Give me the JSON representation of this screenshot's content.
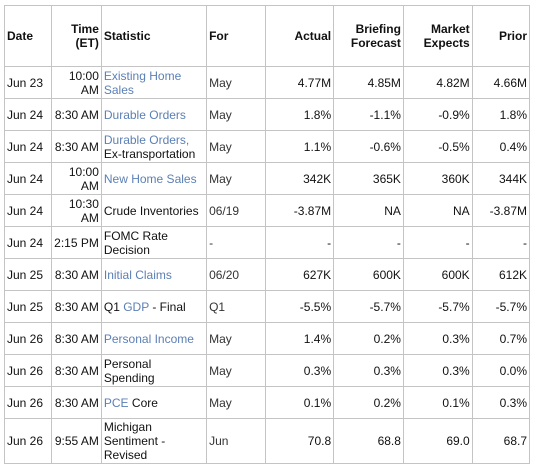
{
  "headers": {
    "date": "Date",
    "time_line1": "Time",
    "time_line2": "(ET)",
    "statistic": "Statistic",
    "for": "For",
    "actual": "Actual",
    "briefing_line1": "Briefing",
    "briefing_line2": "Forecast",
    "market_line1": "Market",
    "market_line2": "Expects",
    "prior": "Prior"
  },
  "rows": [
    {
      "date": "Jun 23",
      "time": "10:00 AM",
      "stat_link": "Existing Home Sales",
      "stat_plain": "",
      "stat_suffix": "",
      "for": "May",
      "actual": "4.77M",
      "briefing": "4.85M",
      "market": "4.82M",
      "prior": "4.66M"
    },
    {
      "date": "Jun 24",
      "time": "8:30 AM",
      "stat_link": "Durable Orders",
      "stat_plain": "",
      "stat_suffix": "",
      "for": "May",
      "actual": "1.8%",
      "briefing": "-1.1%",
      "market": "-0.9%",
      "prior": "1.8%"
    },
    {
      "date": "Jun 24",
      "time": "8:30 AM",
      "stat_link": "Durable Orders,",
      "stat_plain": "",
      "stat_suffix": "Ex-transportation",
      "for": "May",
      "actual": "1.1%",
      "briefing": "-0.6%",
      "market": "-0.5%",
      "prior": "0.4%"
    },
    {
      "date": "Jun 24",
      "time": "10:00 AM",
      "stat_link": "New Home Sales",
      "stat_plain": "",
      "stat_suffix": "",
      "for": "May",
      "actual": "342K",
      "briefing": "365K",
      "market": "360K",
      "prior": "344K"
    },
    {
      "date": "Jun 24",
      "time": "10:30 AM",
      "stat_link": "",
      "stat_plain": "Crude Inventories",
      "stat_suffix": "",
      "for": "06/19",
      "actual": "-3.87M",
      "briefing": "NA",
      "market": "NA",
      "prior": "-3.87M"
    },
    {
      "date": "Jun 24",
      "time": "2:15 PM",
      "stat_link": "",
      "stat_plain": "FOMC Rate Decision",
      "stat_suffix": "",
      "for": "-",
      "actual": "-",
      "briefing": "-",
      "market": "-",
      "prior": "-"
    },
    {
      "date": "Jun 25",
      "time": "8:30 AM",
      "stat_link": "Initial Claims",
      "stat_plain": "",
      "stat_suffix": "",
      "for": "06/20",
      "actual": "627K",
      "briefing": "600K",
      "market": "600K",
      "prior": "612K"
    },
    {
      "date": "Jun 25",
      "time": "8:30 AM",
      "stat_plain": "Q1 ",
      "stat_link": "GDP",
      "stat_suffix": " - Final",
      "for": "Q1",
      "actual": "-5.5%",
      "briefing": "-5.7%",
      "market": "-5.7%",
      "prior": "-5.7%"
    },
    {
      "date": "Jun 26",
      "time": "8:30 AM",
      "stat_link": "Personal Income",
      "stat_plain": "",
      "stat_suffix": "",
      "for": "May",
      "actual": "1.4%",
      "briefing": "0.2%",
      "market": "0.3%",
      "prior": "0.7%"
    },
    {
      "date": "Jun 26",
      "time": "8:30 AM",
      "stat_link": "",
      "stat_plain": "Personal Spending",
      "stat_suffix": "",
      "for": "May",
      "actual": "0.3%",
      "briefing": "0.3%",
      "market": "0.3%",
      "prior": "0.0%"
    },
    {
      "date": "Jun 26",
      "time": "8:30 AM",
      "stat_link": "PCE",
      "stat_plain": "",
      "stat_suffix": " Core",
      "for": "May",
      "actual": "0.1%",
      "briefing": "0.2%",
      "market": "0.1%",
      "prior": "0.3%"
    },
    {
      "date": "Jun 26",
      "time": "9:55 AM",
      "stat_link": "",
      "stat_plain": "Michigan Sentiment - Revised",
      "stat_suffix": "",
      "for": "Jun",
      "actual": "70.8",
      "briefing": "68.8",
      "market": "69.0",
      "prior": "68.7"
    }
  ]
}
